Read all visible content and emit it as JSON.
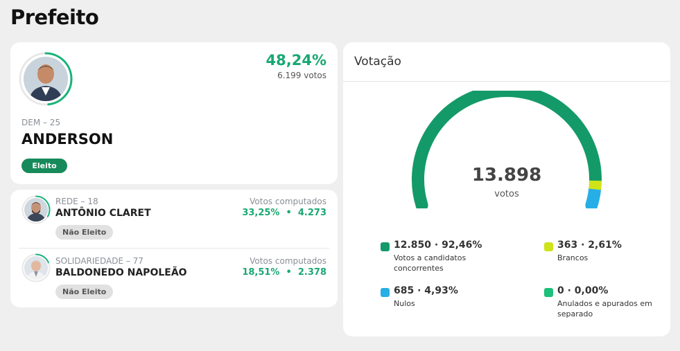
{
  "page": {
    "title": "Prefeito"
  },
  "winner": {
    "party": "DEM – 25",
    "name": "ANDERSON",
    "percent": "48,24%",
    "votes": "6.199 votos",
    "status": "Eleito",
    "share": 0.4824
  },
  "candidates": [
    {
      "party": "REDE – 18",
      "name": "ANTÔNIO CLARET",
      "votes_label": "Votos computados",
      "result": "33,25%  •  4.273",
      "status": "Não Eleito",
      "share": 0.3325
    },
    {
      "party": "SOLIDARIEDADE – 77",
      "name": "BALDONEDO NAPOLEÃO",
      "votes_label": "Votos computados",
      "result": "18,51%  •  2.378",
      "status": "Não Eleito",
      "share": 0.1851
    }
  ],
  "votacao": {
    "title": "Votação",
    "total": "13.898",
    "total_unit": "votos",
    "legend": [
      {
        "value": "12.850 · 92,46%",
        "label": "Votos a candidatos concorrentes",
        "color": "#139a68",
        "fraction": 0.9246
      },
      {
        "value": "363 · 2,61%",
        "label": "Brancos",
        "color": "#cfe31a",
        "fraction": 0.0261
      },
      {
        "value": "685 · 4,93%",
        "label": "Nulos",
        "color": "#27aee6",
        "fraction": 0.0493
      },
      {
        "value": "0 · 0,00%",
        "label": "Anulados e apurados em separado",
        "color": "#1cc07a",
        "fraction": 0.0
      }
    ]
  },
  "colors": {
    "accent": "#19a873",
    "elected_badge": "#168a5a",
    "ring": "#19b37a"
  }
}
